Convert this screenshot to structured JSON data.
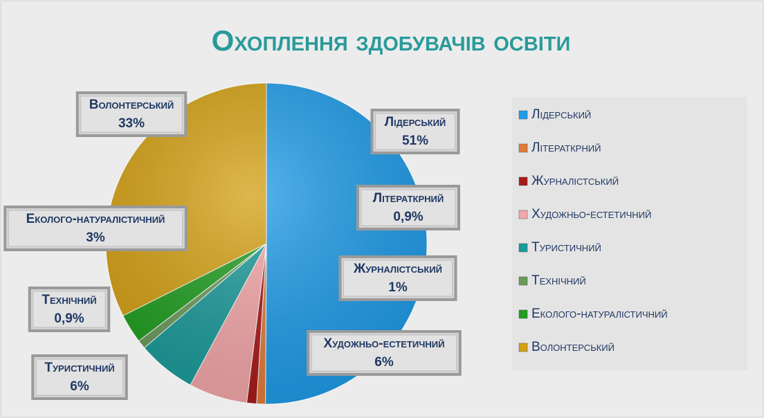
{
  "chart_data": {
    "type": "pie",
    "title": "Охоплення здобувачів освіти",
    "categories": [
      "Лідерський",
      "Літераткрний",
      "Журналістський",
      "Художньо-естетичний",
      "Туристичний",
      "Технічний",
      "Еколого-натуралістичний",
      "Волонтерський"
    ],
    "values": [
      51,
      0.9,
      1,
      6,
      6,
      0.9,
      3,
      33
    ],
    "value_labels": [
      "51%",
      "0,9%",
      "1%",
      "6%",
      "6%",
      "0,9%",
      "3%",
      "33%"
    ],
    "colors": [
      "#1e9be8",
      "#e07b39",
      "#a81818",
      "#f4a6a8",
      "#1a9a9a",
      "#6a9a5a",
      "#1f9e1f",
      "#d4a012"
    ],
    "legend": "right"
  }
}
